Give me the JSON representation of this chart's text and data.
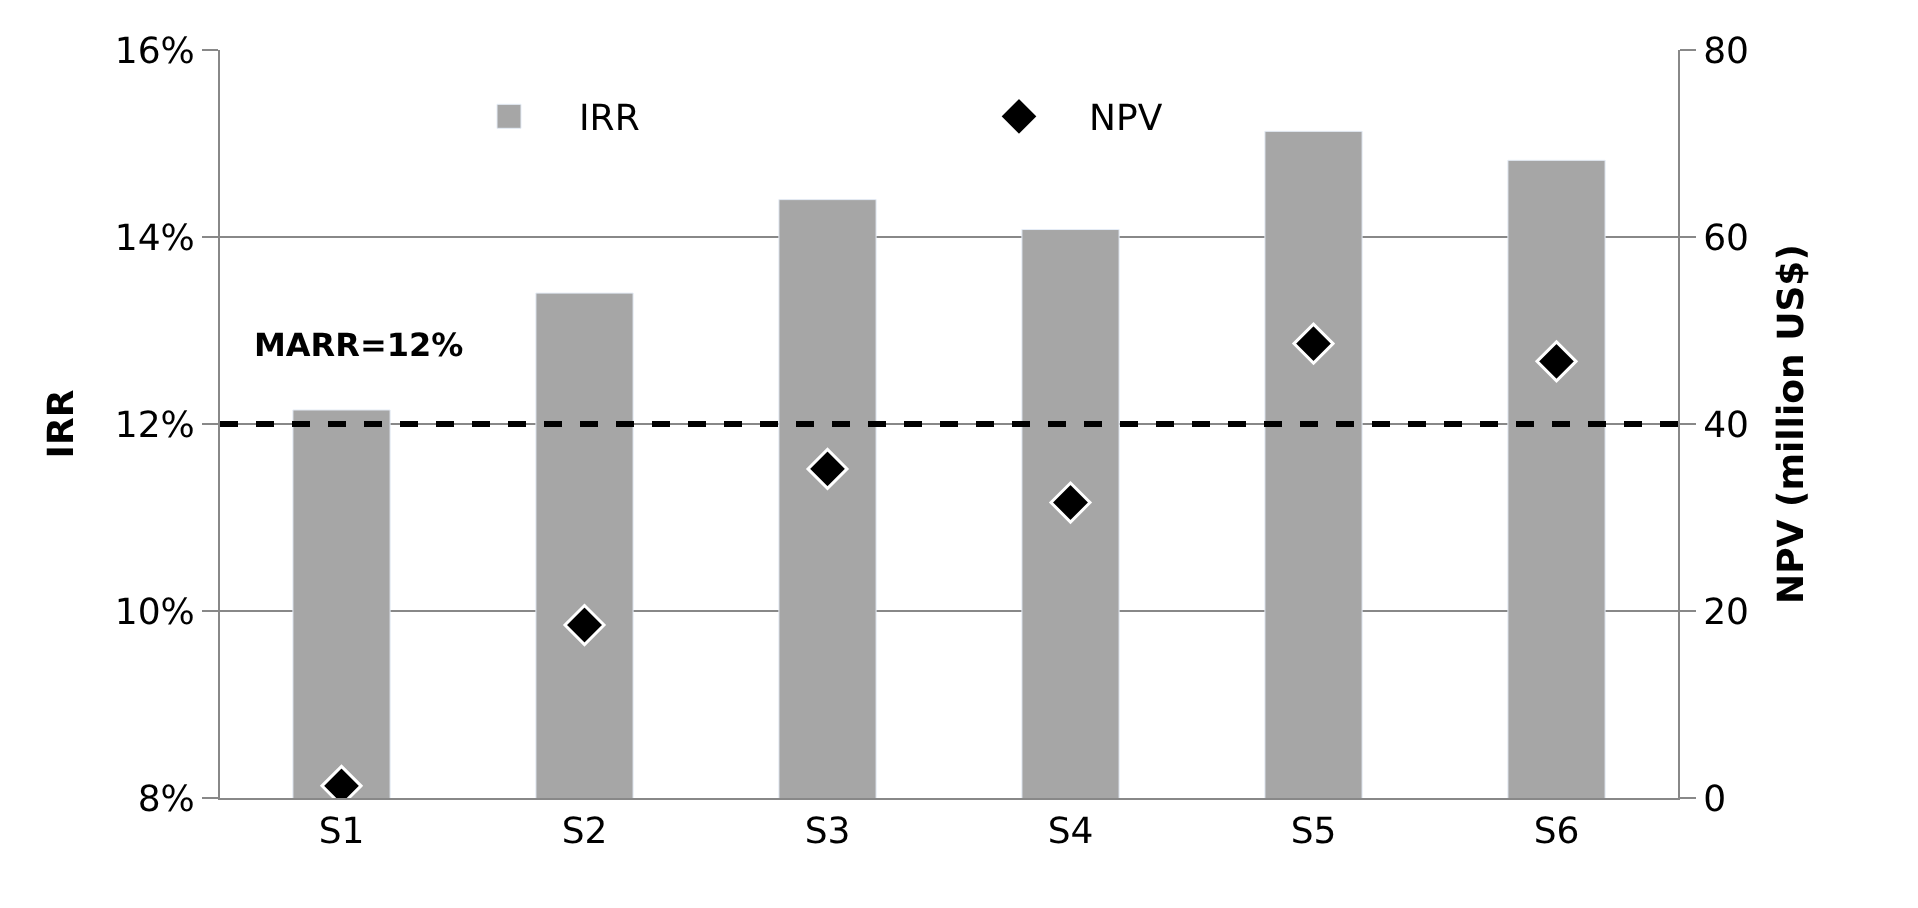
{
  "chart_data": {
    "type": "bar",
    "categories": [
      "S1",
      "S2",
      "S3",
      "S4",
      "S5",
      "S6"
    ],
    "series": [
      {
        "name": "IRR",
        "color": "#a6a6a6",
        "values": [
          12.15,
          13.4,
          14.4,
          14.08,
          15.13,
          14.82
        ]
      },
      {
        "name": "NPV",
        "type": "scatter",
        "axis": "y2",
        "color": "#000000",
        "marker": "diamond",
        "values": [
          1.3,
          18.5,
          35.2,
          31.6,
          48.6,
          46.7
        ]
      }
    ],
    "ylabel": "IRR",
    "y2label": "NPV (million US$)",
    "ylim": [
      8,
      16
    ],
    "yticks": [
      {
        "value": 8,
        "label": "8%"
      },
      {
        "value": 10,
        "label": "10%"
      },
      {
        "value": 12,
        "label": "12%"
      },
      {
        "value": 14,
        "label": "14%"
      },
      {
        "value": 16,
        "label": "16%"
      }
    ],
    "y2lim": [
      0,
      80
    ],
    "y2ticks": [
      0,
      20,
      40,
      60,
      80
    ],
    "ref_lines": [
      {
        "axis": "y",
        "value": 12,
        "label": "MARR=12%",
        "color": "#000000",
        "line_style": "dashed"
      }
    ],
    "grid": "y",
    "legend": "top"
  }
}
